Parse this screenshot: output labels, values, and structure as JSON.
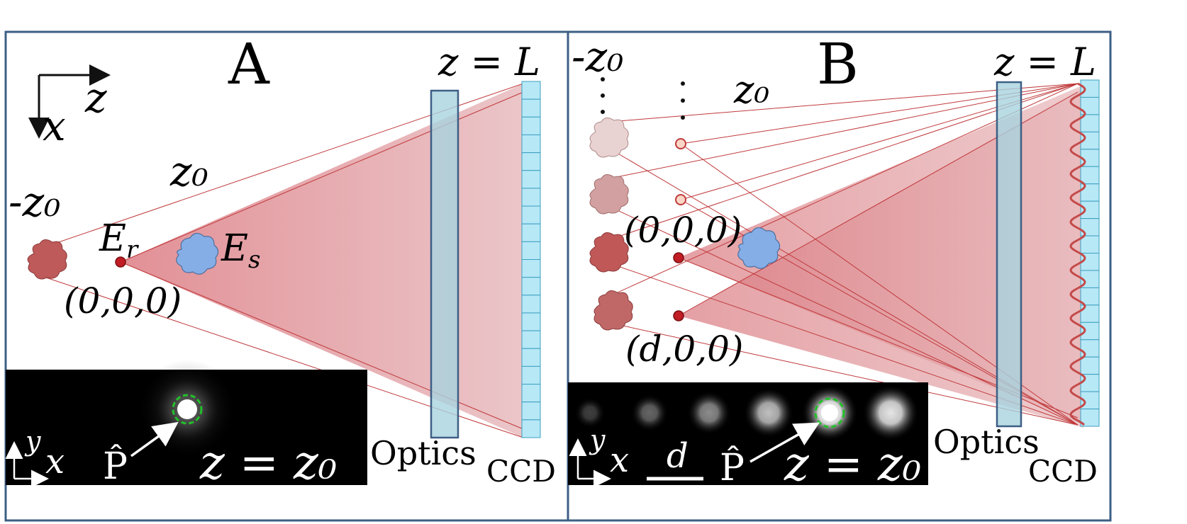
{
  "panel_a": {
    "label": "A",
    "axis_z": "z",
    "axis_x": "x",
    "detector_plane": "z = L",
    "source_plane": "z₀",
    "mirror_plane": "-z₀",
    "reference_label_main": "E",
    "reference_label_sub": "r",
    "sample_label_main": "E",
    "sample_label_sub": "s",
    "origin": "(0,0,0)",
    "optics_label": "Optics",
    "ccd_label": "CCD",
    "inset": {
      "axis_y": "y",
      "axis_x": "x",
      "operator": "P̂",
      "plane": "z = z₀"
    }
  },
  "panel_b": {
    "label": "B",
    "detector_plane": "z = L",
    "mirror_plane": "-z₀",
    "source_plane": "z₀",
    "origin": "(0,0,0)",
    "shifted": "(d,0,0)",
    "optics_label": "Optics",
    "ccd_label": "CCD",
    "inset": {
      "axis_y": "y",
      "axis_x": "x",
      "scale": "d",
      "operator": "P̂",
      "plane": "z = z₀"
    }
  },
  "colors": {
    "frame": "#3d5f85",
    "cone": "#e2989c",
    "ray": "#c0393b",
    "optics": "#a7d3df",
    "ccd": "#b7e8f6",
    "ref_point": "#c01d24",
    "sample_blob": "#86aee6",
    "mirror_blob": "#be5a5a",
    "focus_ring": "#22c02a"
  }
}
